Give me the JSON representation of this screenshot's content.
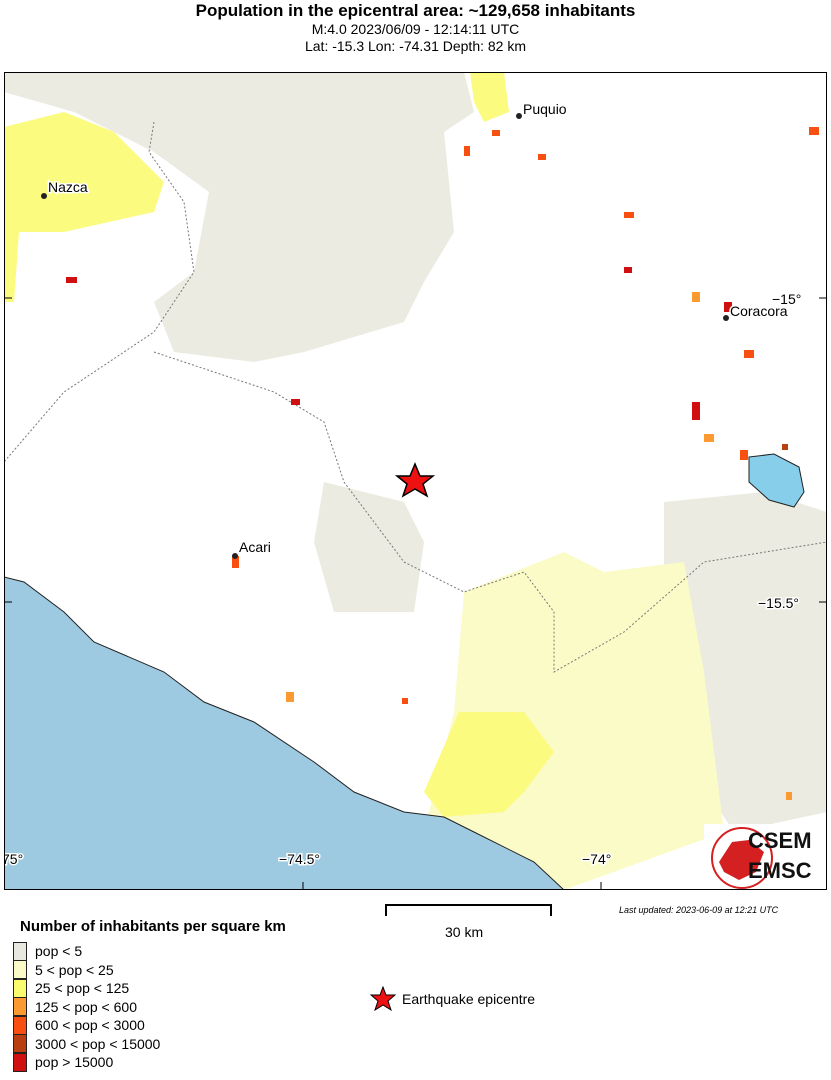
{
  "header": {
    "title": "Population in the epicentral area: ~129,658 inhabitants",
    "subtitle": "M:4.0 2023/06/09 - 12:14:11 UTC",
    "location": "Lat: -15.3 Lon: -74.31 Depth: 82 km"
  },
  "map": {
    "places": [
      "Puquio",
      "Nazca",
      "Coracora",
      "Acari"
    ],
    "lon_ticks": [
      "75°",
      "−74.5°",
      "−74°"
    ],
    "lat_ticks": [
      "−15°",
      "−15.5°"
    ],
    "epicentre": {
      "lat": -15.3,
      "lon": -74.31
    },
    "colors": {
      "sea": "#9ecae1",
      "lake": "#87ceeb",
      "epicentre": "#ee1111"
    }
  },
  "logo": {
    "top": "CSEM",
    "bottom": "EMSC"
  },
  "scale": {
    "label": "30 km"
  },
  "updated": "Last updated: 2023-06-09 at 12:21 UTC",
  "legend": {
    "title": "Number of inhabitants per square km",
    "items": [
      {
        "label": "pop < 5",
        "color": "#e8e8e0"
      },
      {
        "label": "5 < pop < 25",
        "color": "#fbfbc8"
      },
      {
        "label": "25 < pop < 125",
        "color": "#fbfb70"
      },
      {
        "label": "125 < pop < 600",
        "color": "#fb9a30"
      },
      {
        "label": "600 < pop < 3000",
        "color": "#f85010"
      },
      {
        "label": "3000 < pop < 15000",
        "color": "#b84010"
      },
      {
        "label": "pop > 15000",
        "color": "#d01010"
      }
    ],
    "epicentre_label": "Earthquake epicentre"
  }
}
